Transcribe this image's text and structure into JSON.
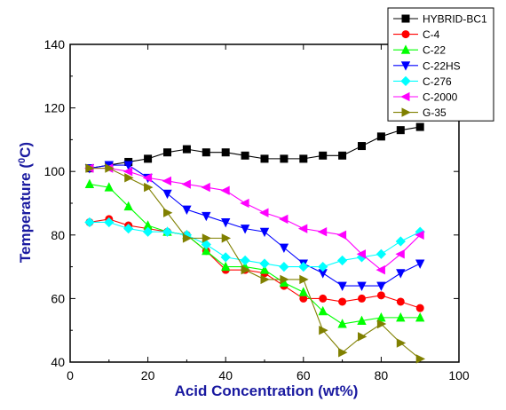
{
  "chart_data": {
    "type": "line",
    "title": "",
    "xlabel": "Acid Concentration (wt%)",
    "ylabel": {
      "prefix": "Temperature (",
      "superscript": "0",
      "suffix": "C)"
    },
    "xlim": [
      0,
      100
    ],
    "ylim": [
      40,
      140
    ],
    "xticks": [
      0,
      20,
      40,
      60,
      80,
      100
    ],
    "yticks": [
      40,
      60,
      80,
      100,
      120,
      140
    ],
    "grid": false,
    "legend_position": "top-right",
    "series": [
      {
        "name": "HYBRID-BC1",
        "color": "#000000",
        "marker": "square",
        "x": [
          5,
          10,
          15,
          20,
          25,
          30,
          35,
          40,
          45,
          50,
          55,
          60,
          65,
          70,
          75,
          80,
          85,
          90
        ],
        "y": [
          101,
          102,
          103,
          104,
          106,
          107,
          106,
          106,
          105,
          104,
          104,
          104,
          105,
          105,
          108,
          111,
          113,
          114
        ]
      },
      {
        "name": "C-4",
        "color": "#ff0000",
        "marker": "circle",
        "x": [
          5,
          10,
          15,
          20,
          25,
          30,
          35,
          40,
          45,
          50,
          55,
          60,
          65,
          70,
          75,
          80,
          85,
          90
        ],
        "y": [
          84,
          85,
          83,
          82,
          81,
          80,
          75,
          69,
          69,
          68,
          64,
          60,
          60,
          59,
          60,
          61,
          59,
          57
        ]
      },
      {
        "name": "C-22",
        "color": "#00ff00",
        "marker": "triangle-up",
        "x": [
          5,
          10,
          15,
          20,
          25,
          30,
          35,
          40,
          45,
          50,
          55,
          60,
          65,
          70,
          75,
          80,
          85,
          90
        ],
        "y": [
          96,
          95,
          89,
          83,
          81,
          80,
          75,
          70,
          70,
          69,
          65,
          62,
          56,
          52,
          53,
          54,
          54,
          54
        ]
      },
      {
        "name": "C-22HS",
        "color": "#0000ff",
        "marker": "triangle-down",
        "x": [
          5,
          10,
          15,
          20,
          25,
          30,
          35,
          40,
          45,
          50,
          55,
          60,
          65,
          70,
          75,
          80,
          85,
          90
        ],
        "y": [
          101,
          102,
          102,
          98,
          93,
          88,
          86,
          84,
          82,
          81,
          76,
          71,
          68,
          64,
          64,
          64,
          68,
          71
        ]
      },
      {
        "name": "C-276",
        "color": "#00ffff",
        "marker": "diamond",
        "x": [
          5,
          10,
          15,
          20,
          25,
          30,
          35,
          40,
          45,
          50,
          55,
          60,
          65,
          70,
          75,
          80,
          85,
          90
        ],
        "y": [
          84,
          84,
          82,
          81,
          81,
          80,
          77,
          73,
          72,
          71,
          70,
          70,
          70,
          72,
          73,
          74,
          78,
          81
        ]
      },
      {
        "name": "C-2000",
        "color": "#ff00ff",
        "marker": "triangle-left",
        "x": [
          5,
          10,
          15,
          20,
          25,
          30,
          35,
          40,
          45,
          50,
          55,
          60,
          65,
          70,
          75,
          80,
          85,
          90
        ],
        "y": [
          101,
          101,
          100,
          98,
          97,
          96,
          95,
          94,
          90,
          87,
          85,
          82,
          81,
          80,
          74,
          69,
          74,
          80
        ]
      },
      {
        "name": "G-35",
        "color": "#808000",
        "marker": "triangle-right",
        "x": [
          5,
          10,
          15,
          20,
          25,
          30,
          35,
          40,
          45,
          50,
          55,
          60,
          65,
          70,
          75,
          80,
          85,
          90
        ],
        "y": [
          101,
          101,
          98,
          95,
          87,
          79,
          79,
          79,
          69,
          66,
          66,
          66,
          50,
          43,
          48,
          52,
          46,
          41
        ]
      }
    ]
  }
}
